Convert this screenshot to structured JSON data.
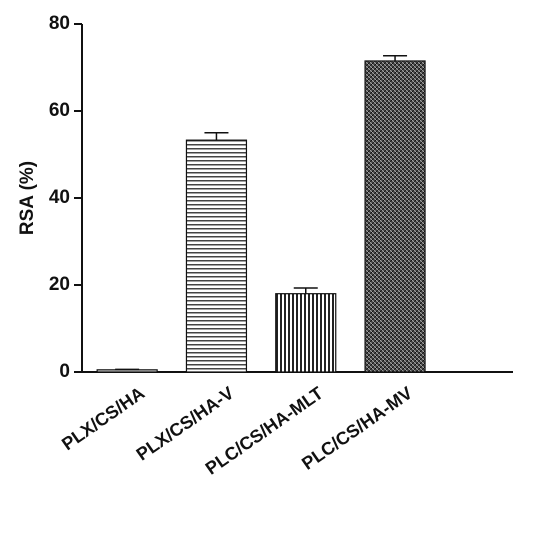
{
  "chart_data": {
    "type": "bar",
    "y_label": "RSA (%)",
    "categories": [
      "PLX/CS/HA",
      "PLX/CS/HA-V",
      "PLC/CS/HA-MLT",
      "PLC/CS/HA-MV"
    ],
    "values": [
      0.5,
      53.3,
      18,
      71.5
    ],
    "errors": [
      0.1,
      1.7,
      1.3,
      1.2
    ],
    "ylim": [
      0,
      80
    ],
    "yticks": [
      0,
      20,
      40,
      60,
      80
    ]
  }
}
